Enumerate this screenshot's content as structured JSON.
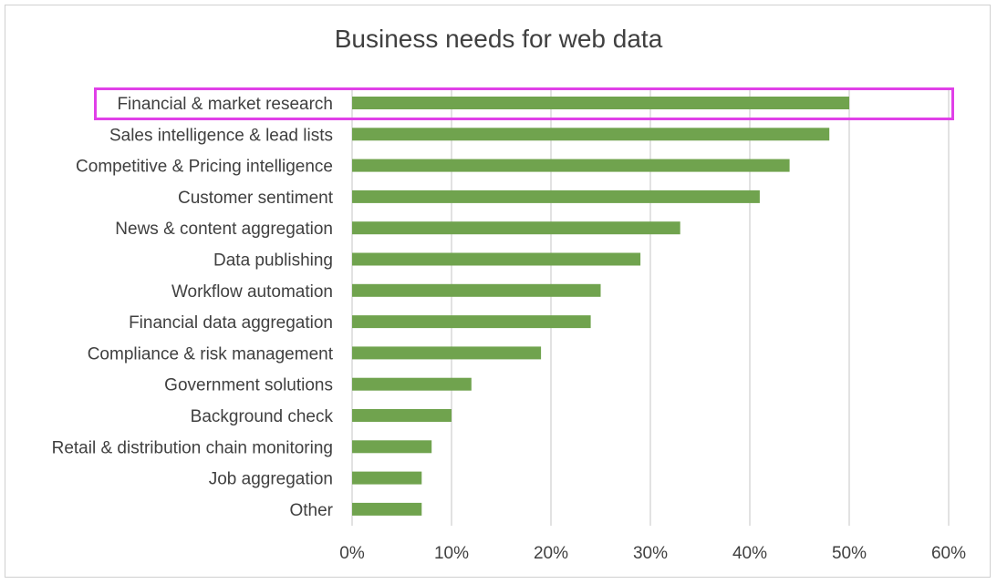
{
  "chart_data": {
    "type": "bar",
    "orientation": "horizontal",
    "title": "Business needs for web data",
    "categories": [
      "Financial & market research",
      "Sales intelligence & lead lists",
      "Competitive & Pricing intelligence",
      "Customer sentiment",
      "News & content aggregation",
      "Data publishing",
      "Workflow automation",
      "Financial data aggregation",
      "Compliance & risk management",
      "Government solutions",
      "Background check",
      "Retail & distribution chain monitoring",
      "Job aggregation",
      "Other"
    ],
    "values": [
      50,
      48,
      44,
      41,
      33,
      29,
      25,
      24,
      19,
      12,
      10,
      8,
      7,
      7
    ],
    "xlim": [
      0,
      60
    ],
    "xticks": [
      "0%",
      "10%",
      "20%",
      "30%",
      "40%",
      "50%",
      "60%"
    ],
    "grid": true,
    "bar_color": "#70a34e",
    "highlighted_category": "Financial & market research",
    "highlight_color": "#e040e8"
  }
}
